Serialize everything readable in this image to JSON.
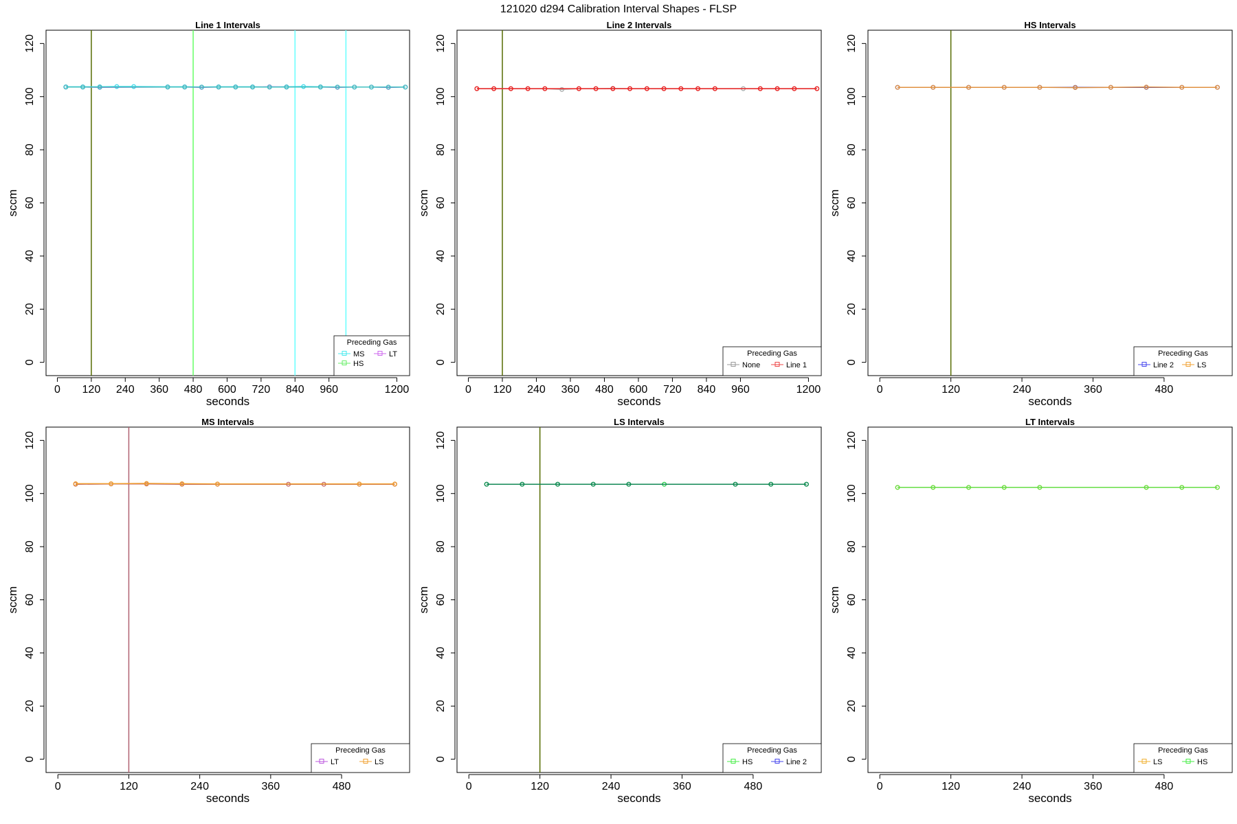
{
  "figure": {
    "title": "121020   d294   Calibration Interval Shapes - FLSP"
  },
  "chart_data": [
    {
      "type": "line",
      "title": "Line 1 Intervals",
      "xlabel": "seconds",
      "ylabel": "sccm",
      "xlim": [
        -40,
        1245
      ],
      "ylim": [
        -5,
        125
      ],
      "xticks": [
        0,
        120,
        240,
        360,
        480,
        600,
        720,
        840,
        960,
        1200
      ],
      "yticks": [
        0,
        20,
        40,
        60,
        80,
        100,
        120
      ],
      "vlines": [
        {
          "x": 120,
          "color": "#556b00"
        },
        {
          "x": 480,
          "color": "#66ff66"
        },
        {
          "x": 840,
          "color": "#66ffff"
        },
        {
          "x": 1020,
          "color": "#66ffff"
        }
      ],
      "legend": {
        "title": "Preceding Gas",
        "position": "bottom-right",
        "entries": [
          {
            "label": "MS",
            "color": "#44e8ee"
          },
          {
            "label": "LT",
            "color": "#cc66ee"
          },
          {
            "label": "HS",
            "color": "#66ee66"
          }
        ]
      },
      "series": [
        {
          "name": "MS",
          "color": "#40d8e8",
          "x": [
            30,
            90,
            150,
            210,
            270,
            390,
            450,
            510,
            570,
            630,
            690,
            750,
            810,
            870,
            930,
            990,
            1050,
            1110,
            1170,
            1230
          ],
          "y": [
            103.7,
            103.7,
            103.7,
            103.8,
            103.8,
            103.7,
            103.7,
            103.6,
            103.7,
            103.7,
            103.7,
            103.6,
            103.7,
            103.8,
            103.7,
            103.6,
            103.6,
            103.6,
            103.5,
            103.6
          ]
        },
        {
          "name": "LT",
          "color": "#b060d8",
          "x": [
            30,
            90,
            150,
            390,
            450,
            510,
            570,
            630,
            690,
            750,
            810,
            930,
            990,
            1050,
            1110,
            1170,
            1230
          ],
          "y": [
            103.6,
            103.6,
            103.5,
            103.6,
            103.6,
            103.5,
            103.6,
            103.6,
            103.6,
            103.7,
            103.6,
            103.6,
            103.5,
            103.6,
            103.6,
            103.5,
            103.6
          ]
        },
        {
          "name": "HS",
          "color": "#40c0c0",
          "x": [
            30,
            90,
            150,
            390,
            450,
            510,
            570,
            630,
            690,
            750,
            810,
            930,
            990,
            1050,
            1110,
            1170,
            1230
          ],
          "y": [
            103.6,
            103.6,
            103.6,
            103.6,
            103.6,
            103.6,
            103.6,
            103.6,
            103.6,
            103.6,
            103.6,
            103.6,
            103.6,
            103.6,
            103.6,
            103.6,
            103.6
          ]
        }
      ]
    },
    {
      "type": "line",
      "title": "Line 2 Intervals",
      "xlabel": "seconds",
      "ylabel": "sccm",
      "xlim": [
        -40,
        1245
      ],
      "ylim": [
        -5,
        125
      ],
      "xticks": [
        0,
        120,
        240,
        360,
        480,
        600,
        720,
        840,
        960,
        1200
      ],
      "yticks": [
        0,
        20,
        40,
        60,
        80,
        100,
        120
      ],
      "vlines": [
        {
          "x": 120,
          "color": "#556b00"
        }
      ],
      "legend": {
        "title": "Preceding Gas",
        "position": "bottom-right",
        "entries": [
          {
            "label": "None",
            "color": "#999999"
          },
          {
            "label": "Line 1",
            "color": "#ee4444"
          }
        ]
      },
      "series": [
        {
          "name": "None",
          "color": "#aaaaaa",
          "x": [
            30,
            90,
            150,
            210,
            270,
            330,
            390,
            450,
            510,
            570,
            630,
            690,
            750,
            810,
            870,
            970,
            1030,
            1090,
            1150,
            1230
          ],
          "y": [
            103.0,
            103.0,
            103.0,
            103.0,
            103.0,
            102.7,
            103.0,
            103.0,
            103.1,
            103.0,
            103.0,
            103.0,
            103.0,
            103.0,
            103.0,
            103.0,
            103.0,
            103.0,
            103.0,
            103.0
          ]
        },
        {
          "name": "Line 1",
          "color": "#ee2222",
          "x": [
            30,
            90,
            150,
            210,
            270,
            390,
            450,
            510,
            570,
            630,
            690,
            750,
            810,
            870,
            1030,
            1090,
            1150,
            1230
          ],
          "y": [
            103.0,
            103.0,
            103.0,
            103.0,
            103.0,
            103.0,
            103.0,
            103.0,
            103.0,
            103.0,
            103.0,
            103.0,
            103.0,
            103.0,
            103.0,
            103.0,
            103.0,
            103.0
          ]
        }
      ]
    },
    {
      "type": "line",
      "title": "HS Intervals",
      "xlabel": "seconds",
      "ylabel": "sccm",
      "xlim": [
        -20,
        595
      ],
      "ylim": [
        -5,
        125
      ],
      "xticks": [
        0,
        120,
        240,
        360,
        480
      ],
      "yticks": [
        0,
        20,
        40,
        60,
        80,
        100,
        120
      ],
      "vlines": [
        {
          "x": 120,
          "color": "#556b00"
        }
      ],
      "legend": {
        "title": "Preceding Gas",
        "position": "bottom-right",
        "entries": [
          {
            "label": "Line 2",
            "color": "#4444ee"
          },
          {
            "label": "LS",
            "color": "#f0a030"
          }
        ]
      },
      "series": [
        {
          "name": "Line 2",
          "color": "#3333cc",
          "x": [
            30,
            90,
            150,
            210,
            270,
            330,
            390,
            450,
            510,
            570
          ],
          "y": [
            103.5,
            103.5,
            103.5,
            103.5,
            103.5,
            103.5,
            103.5,
            103.5,
            103.5,
            103.5
          ]
        },
        {
          "name": "LS",
          "color": "#e09040",
          "x": [
            30,
            90,
            150,
            210,
            270,
            330,
            390,
            450,
            510,
            570
          ],
          "y": [
            103.5,
            103.5,
            103.5,
            103.5,
            103.5,
            103.4,
            103.5,
            103.6,
            103.5,
            103.5
          ]
        }
      ]
    },
    {
      "type": "line",
      "title": "MS Intervals",
      "xlabel": "seconds",
      "ylabel": "sccm",
      "xlim": [
        -20,
        595
      ],
      "ylim": [
        -5,
        125
      ],
      "xticks": [
        0,
        120,
        240,
        360,
        480
      ],
      "yticks": [
        0,
        20,
        40,
        60,
        80,
        100,
        120
      ],
      "vlines": [
        {
          "x": 120,
          "color": "#b06070"
        }
      ],
      "legend": {
        "title": "Preceding Gas",
        "position": "bottom-right",
        "entries": [
          {
            "label": "LT",
            "color": "#bb55dd"
          },
          {
            "label": "LS",
            "color": "#f0a030"
          }
        ]
      },
      "series": [
        {
          "name": "LT",
          "color": "#c06060",
          "x": [
            30,
            90,
            150,
            210,
            270,
            390,
            450,
            510,
            570
          ],
          "y": [
            103.5,
            103.6,
            103.6,
            103.5,
            103.5,
            103.5,
            103.5,
            103.5,
            103.5
          ]
        },
        {
          "name": "LS",
          "color": "#f0a030",
          "x": [
            30,
            90,
            150,
            210,
            270,
            510,
            570
          ],
          "y": [
            103.7,
            103.7,
            103.8,
            103.7,
            103.6,
            103.6,
            103.6
          ]
        }
      ]
    },
    {
      "type": "line",
      "title": "LS Intervals",
      "xlabel": "seconds",
      "ylabel": "sccm",
      "xlim": [
        -20,
        595
      ],
      "ylim": [
        -5,
        125
      ],
      "xticks": [
        0,
        120,
        240,
        360,
        480
      ],
      "yticks": [
        0,
        20,
        40,
        60,
        80,
        100,
        120
      ],
      "vlines": [
        {
          "x": 120,
          "color": "#556b00"
        }
      ],
      "legend": {
        "title": "Preceding Gas",
        "position": "bottom-right",
        "entries": [
          {
            "label": "HS",
            "color": "#44ee44"
          },
          {
            "label": "Line 2",
            "color": "#4444ee"
          }
        ]
      },
      "series": [
        {
          "name": "HS",
          "color": "#22cc44",
          "x": [
            30,
            90,
            150,
            210,
            270,
            330,
            450,
            510,
            570
          ],
          "y": [
            103.5,
            103.5,
            103.5,
            103.5,
            103.5,
            103.5,
            103.5,
            103.5,
            103.5
          ]
        },
        {
          "name": "Line 2",
          "color": "#118855",
          "x": [
            30,
            90,
            150,
            210,
            270,
            450,
            510,
            570
          ],
          "y": [
            103.5,
            103.5,
            103.5,
            103.5,
            103.5,
            103.5,
            103.5,
            103.5
          ]
        }
      ]
    },
    {
      "type": "line",
      "title": "LT Intervals",
      "xlabel": "seconds",
      "ylabel": "sccm",
      "xlim": [
        -20,
        595
      ],
      "ylim": [
        -5,
        125
      ],
      "xticks": [
        0,
        120,
        240,
        360,
        480
      ],
      "yticks": [
        0,
        20,
        40,
        60,
        80,
        100,
        120
      ],
      "vlines": [],
      "legend": {
        "title": "Preceding Gas",
        "position": "bottom-right",
        "entries": [
          {
            "label": "LS",
            "color": "#f0b030"
          },
          {
            "label": "HS",
            "color": "#44ee44"
          }
        ]
      },
      "series": [
        {
          "name": "LS",
          "color": "#c8d030",
          "x": [
            30,
            90,
            150,
            210,
            270,
            450,
            510,
            570
          ],
          "y": [
            102.3,
            102.3,
            102.3,
            102.3,
            102.3,
            102.3,
            102.3,
            102.3
          ]
        },
        {
          "name": "HS",
          "color": "#66dd44",
          "x": [
            30,
            90,
            150,
            210,
            270,
            450,
            510,
            570
          ],
          "y": [
            102.3,
            102.3,
            102.3,
            102.3,
            102.3,
            102.3,
            102.3,
            102.3
          ]
        }
      ]
    }
  ]
}
